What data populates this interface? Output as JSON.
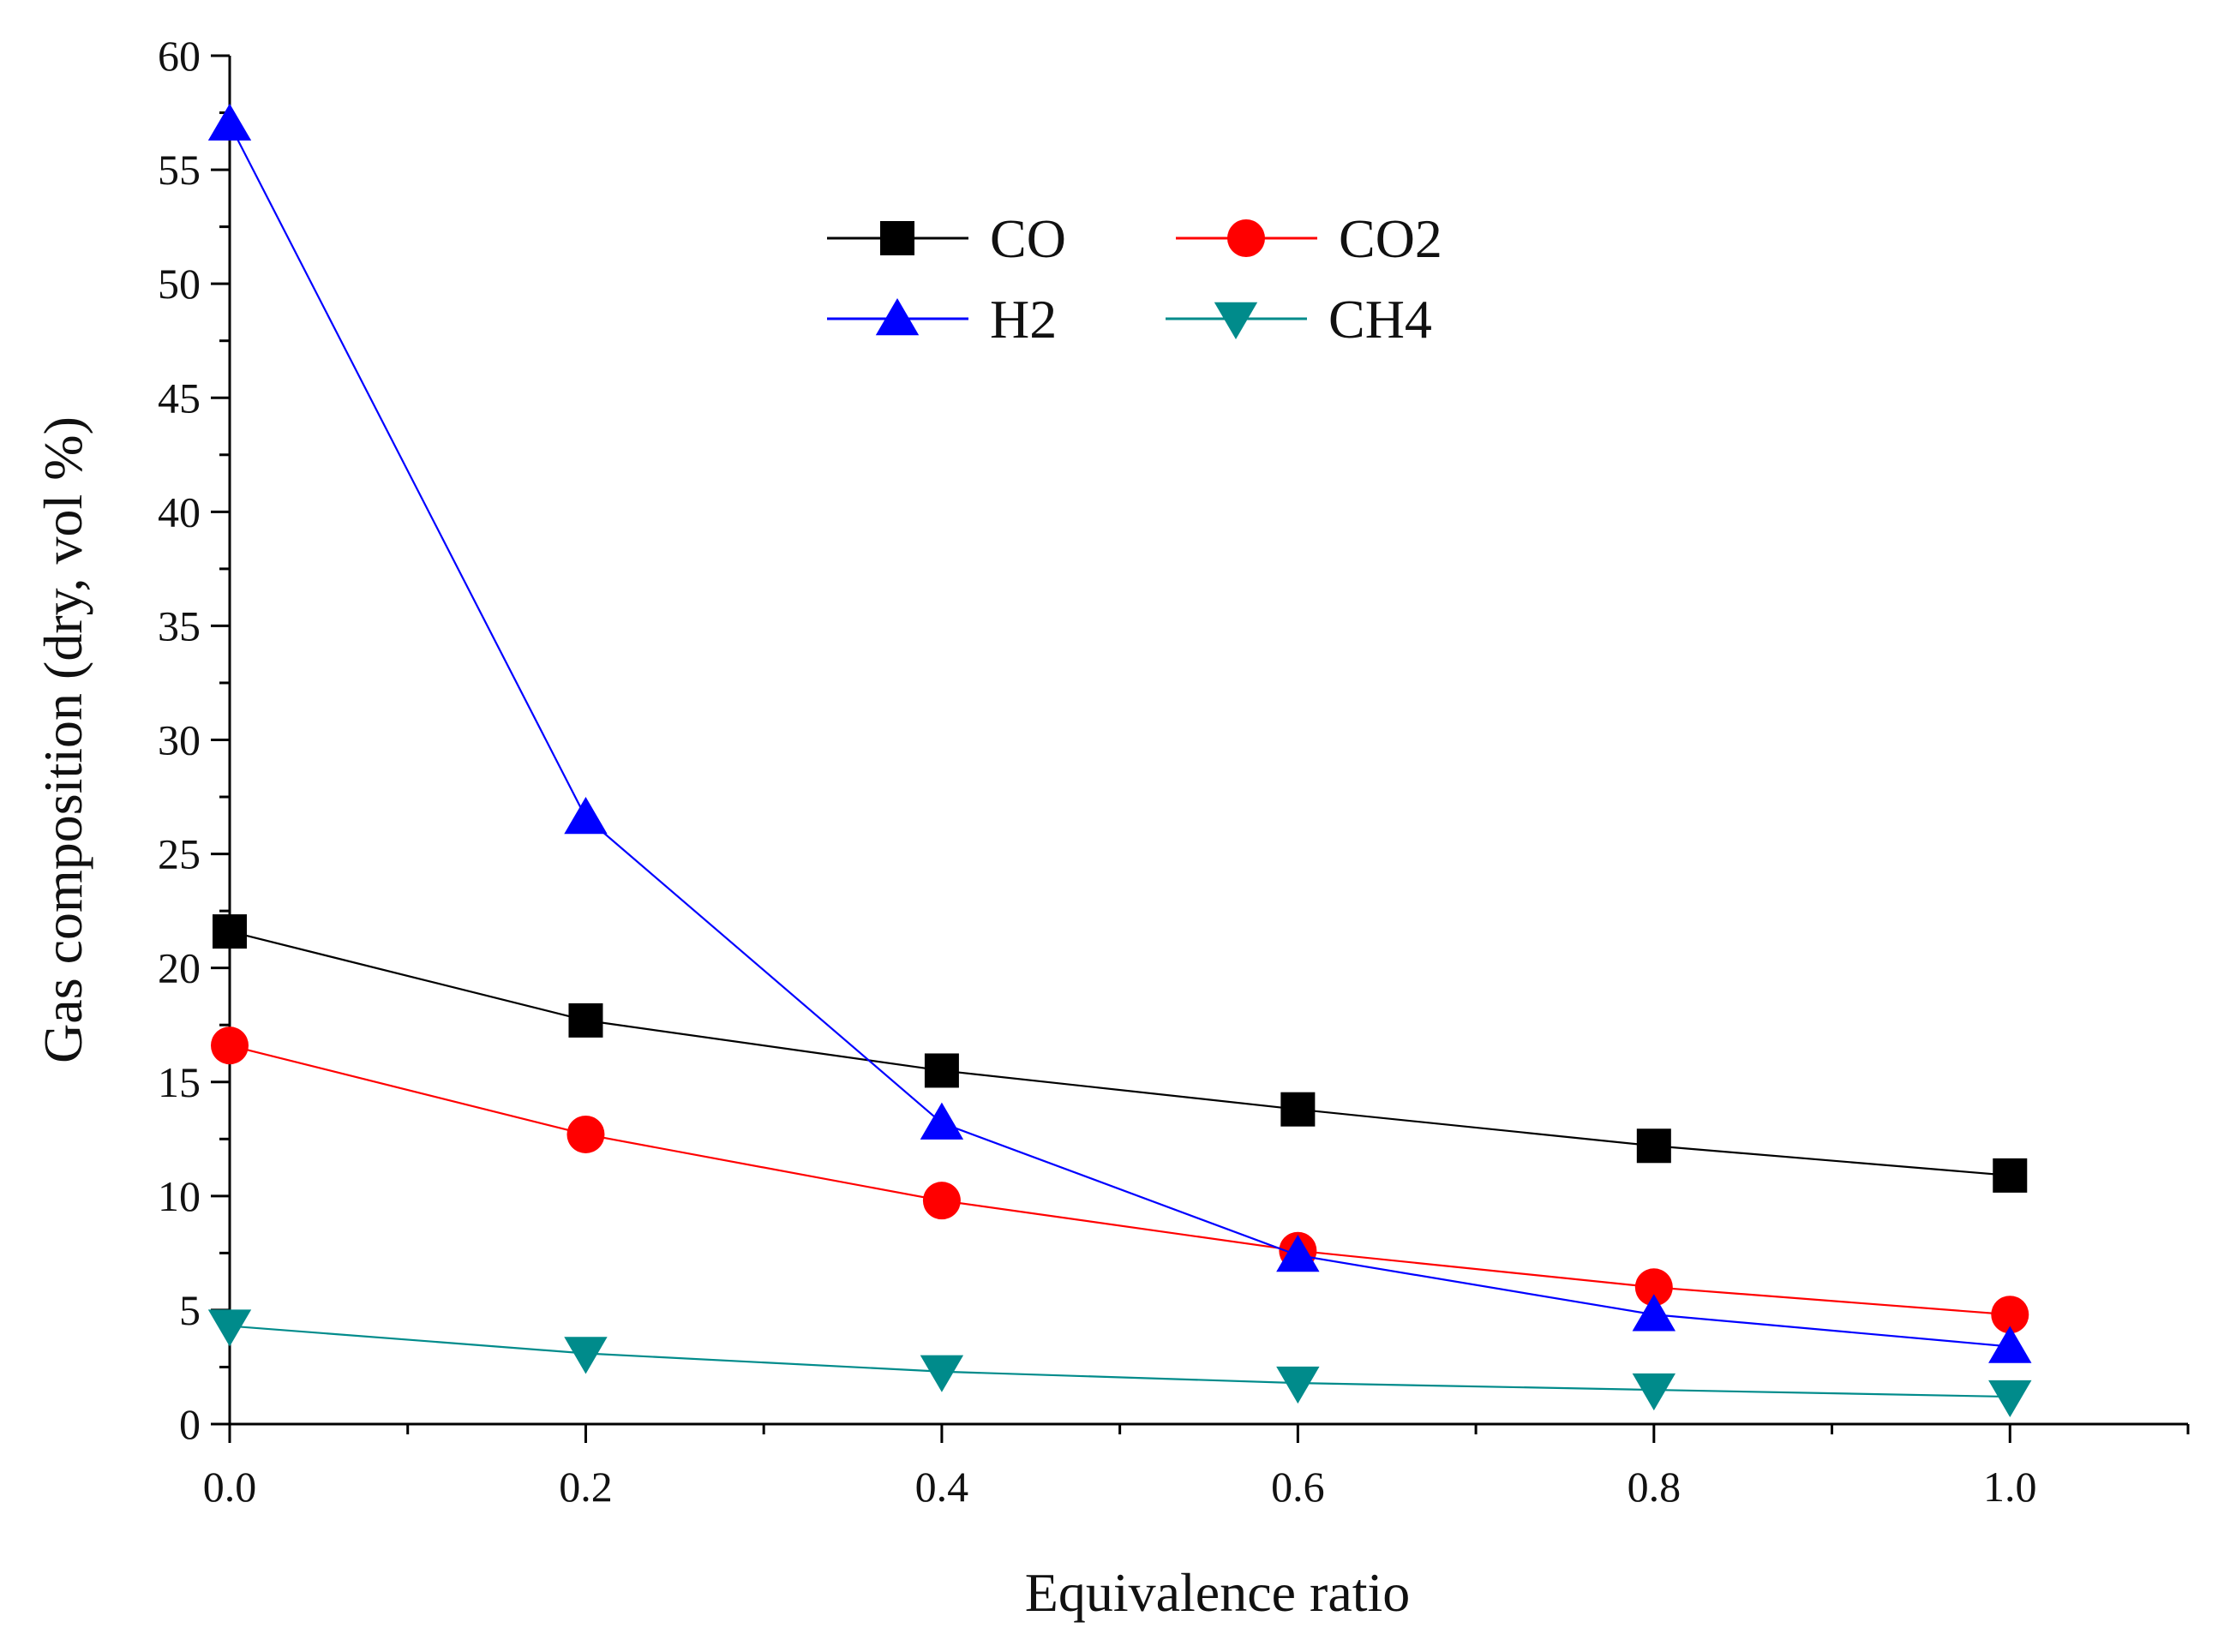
{
  "chart_data": {
    "type": "line",
    "title": "",
    "xlabel": "Equivalence ratio",
    "ylabel": "Gas composition (dry, vol %)",
    "xlim": [
      0,
      1.1
    ],
    "ylim": [
      0,
      60
    ],
    "xticks": [
      "0.0",
      "0.2",
      "0.4",
      "0.6",
      "0.8",
      "1.0"
    ],
    "xtick_values": [
      0,
      0.2,
      0.4,
      0.6,
      0.8,
      1.0
    ],
    "yticks": [
      "0",
      "5",
      "10",
      "15",
      "20",
      "25",
      "30",
      "35",
      "40",
      "45",
      "50",
      "55",
      "60"
    ],
    "ytick_values": [
      0,
      5,
      10,
      15,
      20,
      25,
      30,
      35,
      40,
      45,
      50,
      55,
      60
    ],
    "x": [
      0,
      0.2,
      0.4,
      0.6,
      0.8,
      1.0
    ],
    "legend_position": "top-center",
    "series": [
      {
        "name": "CO",
        "color": "#000000",
        "marker": "square",
        "values": [
          21.6,
          17.7,
          15.5,
          13.8,
          12.2,
          10.9
        ]
      },
      {
        "name": "CO2",
        "color": "#ff0000",
        "marker": "circle",
        "values": [
          16.6,
          12.7,
          9.8,
          7.6,
          6.0,
          4.8
        ]
      },
      {
        "name": "H2",
        "color": "#0000ff",
        "marker": "triangle-up",
        "values": [
          57.0,
          26.6,
          13.2,
          7.4,
          4.8,
          3.4
        ]
      },
      {
        "name": "CH4",
        "color": "#008b8b",
        "marker": "triangle-down",
        "values": [
          4.3,
          3.1,
          2.3,
          1.8,
          1.5,
          1.2
        ]
      }
    ]
  }
}
